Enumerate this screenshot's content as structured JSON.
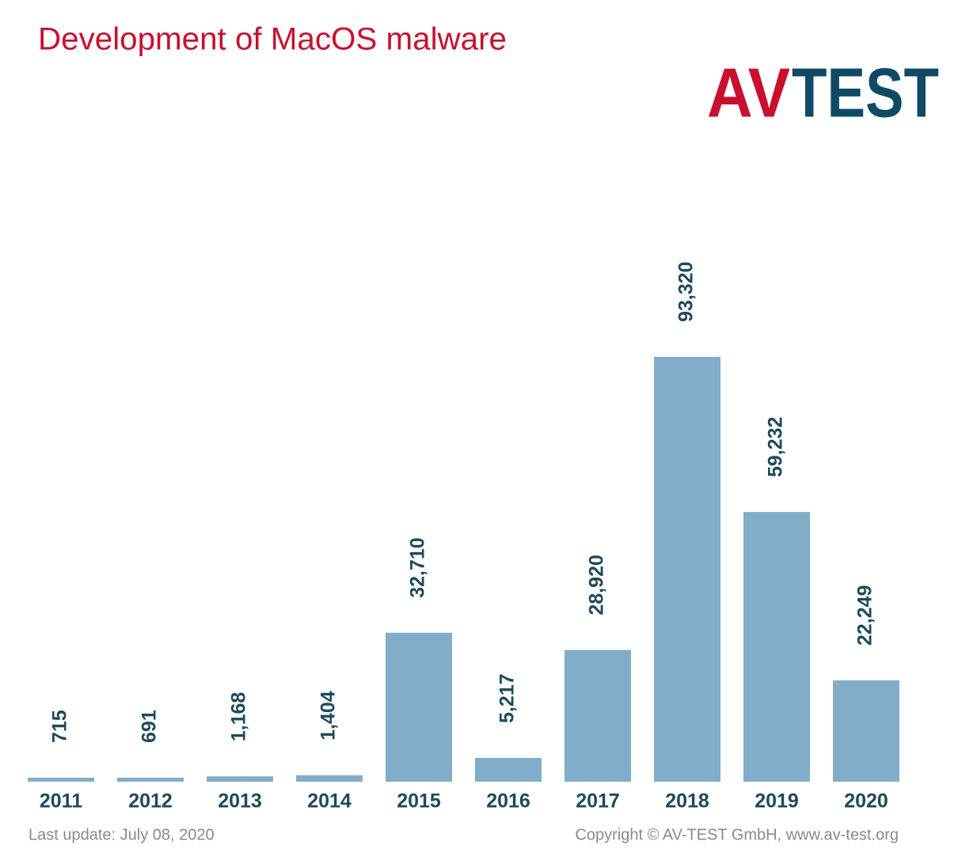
{
  "chart_data": {
    "type": "bar",
    "title": "Development of MacOS malware",
    "logo": {
      "left": "AV",
      "right": "TEST"
    },
    "categories": [
      "2011",
      "2012",
      "2013",
      "2014",
      "2015",
      "2016",
      "2017",
      "2018",
      "2019",
      "2020"
    ],
    "values": [
      715,
      691,
      1168,
      1404,
      32710,
      5217,
      28920,
      93320,
      59232,
      22249
    ],
    "value_labels": [
      "715",
      "691",
      "1,168",
      "1,404",
      "32,710",
      "5,217",
      "28,920",
      "93,320",
      "59,232",
      "22,249"
    ],
    "color": "#82adc8",
    "footer_left": "Last update: July 08, 2020",
    "footer_right": "Copyright © AV-TEST GmbH, www.av-test.org"
  }
}
